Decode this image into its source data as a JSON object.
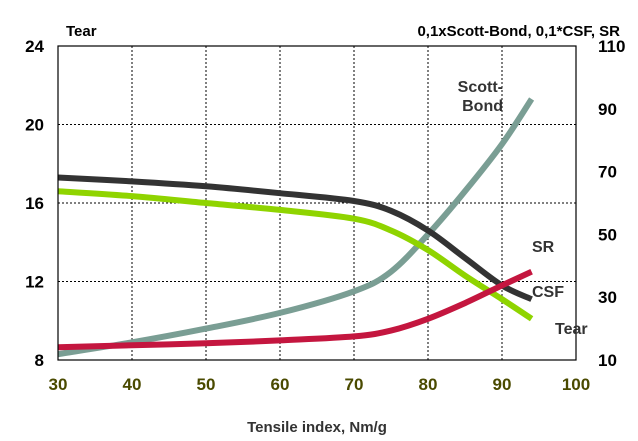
{
  "chart_data": {
    "type": "line",
    "title_left": "Tear",
    "title_right": "0,1xScott-Bond, 0,1*CSF, SR",
    "xlabel": "Tensile index, Nm/g",
    "xlim": [
      30,
      100
    ],
    "x_ticks": [
      "30",
      "40",
      "50",
      "60",
      "70",
      "80",
      "90",
      "100"
    ],
    "ylim_left": [
      8,
      24
    ],
    "y_ticks_left": [
      "8",
      "12",
      "16",
      "20",
      "24"
    ],
    "ylim_right": [
      10,
      110
    ],
    "y_ticks_right": [
      "10",
      "30",
      "50",
      "70",
      "90",
      "110"
    ],
    "grid": true,
    "series": [
      {
        "name": "Tear",
        "label_lines": [
          "Tear"
        ],
        "axis": "left",
        "color": "#8fd400",
        "points": [
          [
            30,
            16.6
          ],
          [
            40,
            16.35
          ],
          [
            50,
            16.0
          ],
          [
            60,
            15.65
          ],
          [
            70,
            15.2
          ],
          [
            75,
            14.6
          ],
          [
            80,
            13.6
          ],
          [
            85,
            12.3
          ],
          [
            90,
            11.1
          ],
          [
            94,
            10.1
          ]
        ]
      },
      {
        "name": "CSF",
        "label_lines": [
          "CSF"
        ],
        "axis": "left",
        "color": "#333333",
        "points": [
          [
            30,
            17.3
          ],
          [
            40,
            17.1
          ],
          [
            50,
            16.85
          ],
          [
            60,
            16.5
          ],
          [
            70,
            16.1
          ],
          [
            75,
            15.6
          ],
          [
            80,
            14.6
          ],
          [
            85,
            13.2
          ],
          [
            90,
            11.8
          ],
          [
            94,
            11.1
          ]
        ]
      },
      {
        "name": "Scott-Bond",
        "label_lines": [
          "Scott-",
          "Bond"
        ],
        "axis": "left",
        "color": "#7a9e94",
        "points": [
          [
            30,
            8.3
          ],
          [
            40,
            8.9
          ],
          [
            50,
            9.6
          ],
          [
            60,
            10.4
          ],
          [
            70,
            11.5
          ],
          [
            75,
            12.5
          ],
          [
            80,
            14.4
          ],
          [
            85,
            16.6
          ],
          [
            90,
            19.0
          ],
          [
            94,
            21.3
          ]
        ]
      },
      {
        "name": "SR",
        "label_lines": [
          "SR"
        ],
        "axis": "left",
        "color": "#c4163f",
        "points": [
          [
            30,
            8.65
          ],
          [
            40,
            8.75
          ],
          [
            50,
            8.85
          ],
          [
            60,
            9.0
          ],
          [
            70,
            9.2
          ],
          [
            75,
            9.5
          ],
          [
            80,
            10.1
          ],
          [
            85,
            10.9
          ],
          [
            90,
            11.8
          ],
          [
            94,
            12.5
          ]
        ]
      }
    ]
  }
}
